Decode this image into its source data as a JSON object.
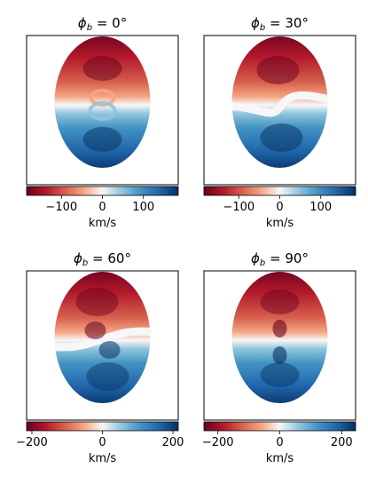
{
  "chart_data": [
    {
      "type": "heatmap",
      "title": "ϕ_b = 0°",
      "title_parts": {
        "var": "ϕ",
        "sub": "b",
        "rest": " = 0°"
      },
      "phi_b_deg": 0,
      "colorbar": {
        "label": "km/s",
        "range": [
          -185,
          185
        ],
        "ticks": [
          -100,
          0,
          100
        ],
        "colormap": "RdBu"
      },
      "map": {
        "shape": "ellipse",
        "features": [
          "red upper half",
          "blue lower half",
          "central ring"
        ]
      }
    },
    {
      "type": "heatmap",
      "title": "ϕ_b = 30°",
      "title_parts": {
        "var": "ϕ",
        "sub": "b",
        "rest": " = 30°"
      },
      "phi_b_deg": 30,
      "colorbar": {
        "label": "km/s",
        "range": [
          -185,
          185
        ],
        "ticks": [
          -100,
          0,
          100
        ],
        "colormap": "RdBu"
      },
      "map": {
        "shape": "ellipse",
        "features": [
          "red upper half",
          "blue lower half",
          "s-shaped zero-velocity line"
        ]
      }
    },
    {
      "type": "heatmap",
      "title": "ϕ_b = 60°",
      "title_parts": {
        "var": "ϕ",
        "sub": "b",
        "rest": " = 60°"
      },
      "phi_b_deg": 60,
      "colorbar": {
        "label": "km/s",
        "range": [
          -215,
          215
        ],
        "ticks": [
          -200,
          0,
          200
        ],
        "colormap": "RdBu"
      },
      "map": {
        "shape": "ellipse",
        "features": [
          "red upper half",
          "blue lower half",
          "twisted zero-velocity line"
        ]
      }
    },
    {
      "type": "heatmap",
      "title": "ϕ_b = 90°",
      "title_parts": {
        "var": "ϕ",
        "sub": "b",
        "rest": " = 90°"
      },
      "phi_b_deg": 90,
      "colorbar": {
        "label": "km/s",
        "range": [
          -245,
          245
        ],
        "ticks": [
          -200,
          0,
          200
        ],
        "colormap": "RdBu"
      },
      "map": {
        "shape": "ellipse",
        "features": [
          "red upper half",
          "blue lower half",
          "central hourglass"
        ]
      }
    }
  ],
  "colors": {
    "red_dark": "#67001f",
    "red": "#b2182b",
    "red_mid": "#d6604d",
    "red_light": "#f4a582",
    "white": "#f7f7f7",
    "blue_light": "#92c5de",
    "blue_mid": "#4393c3",
    "blue": "#2166ac",
    "blue_dark": "#053061"
  }
}
